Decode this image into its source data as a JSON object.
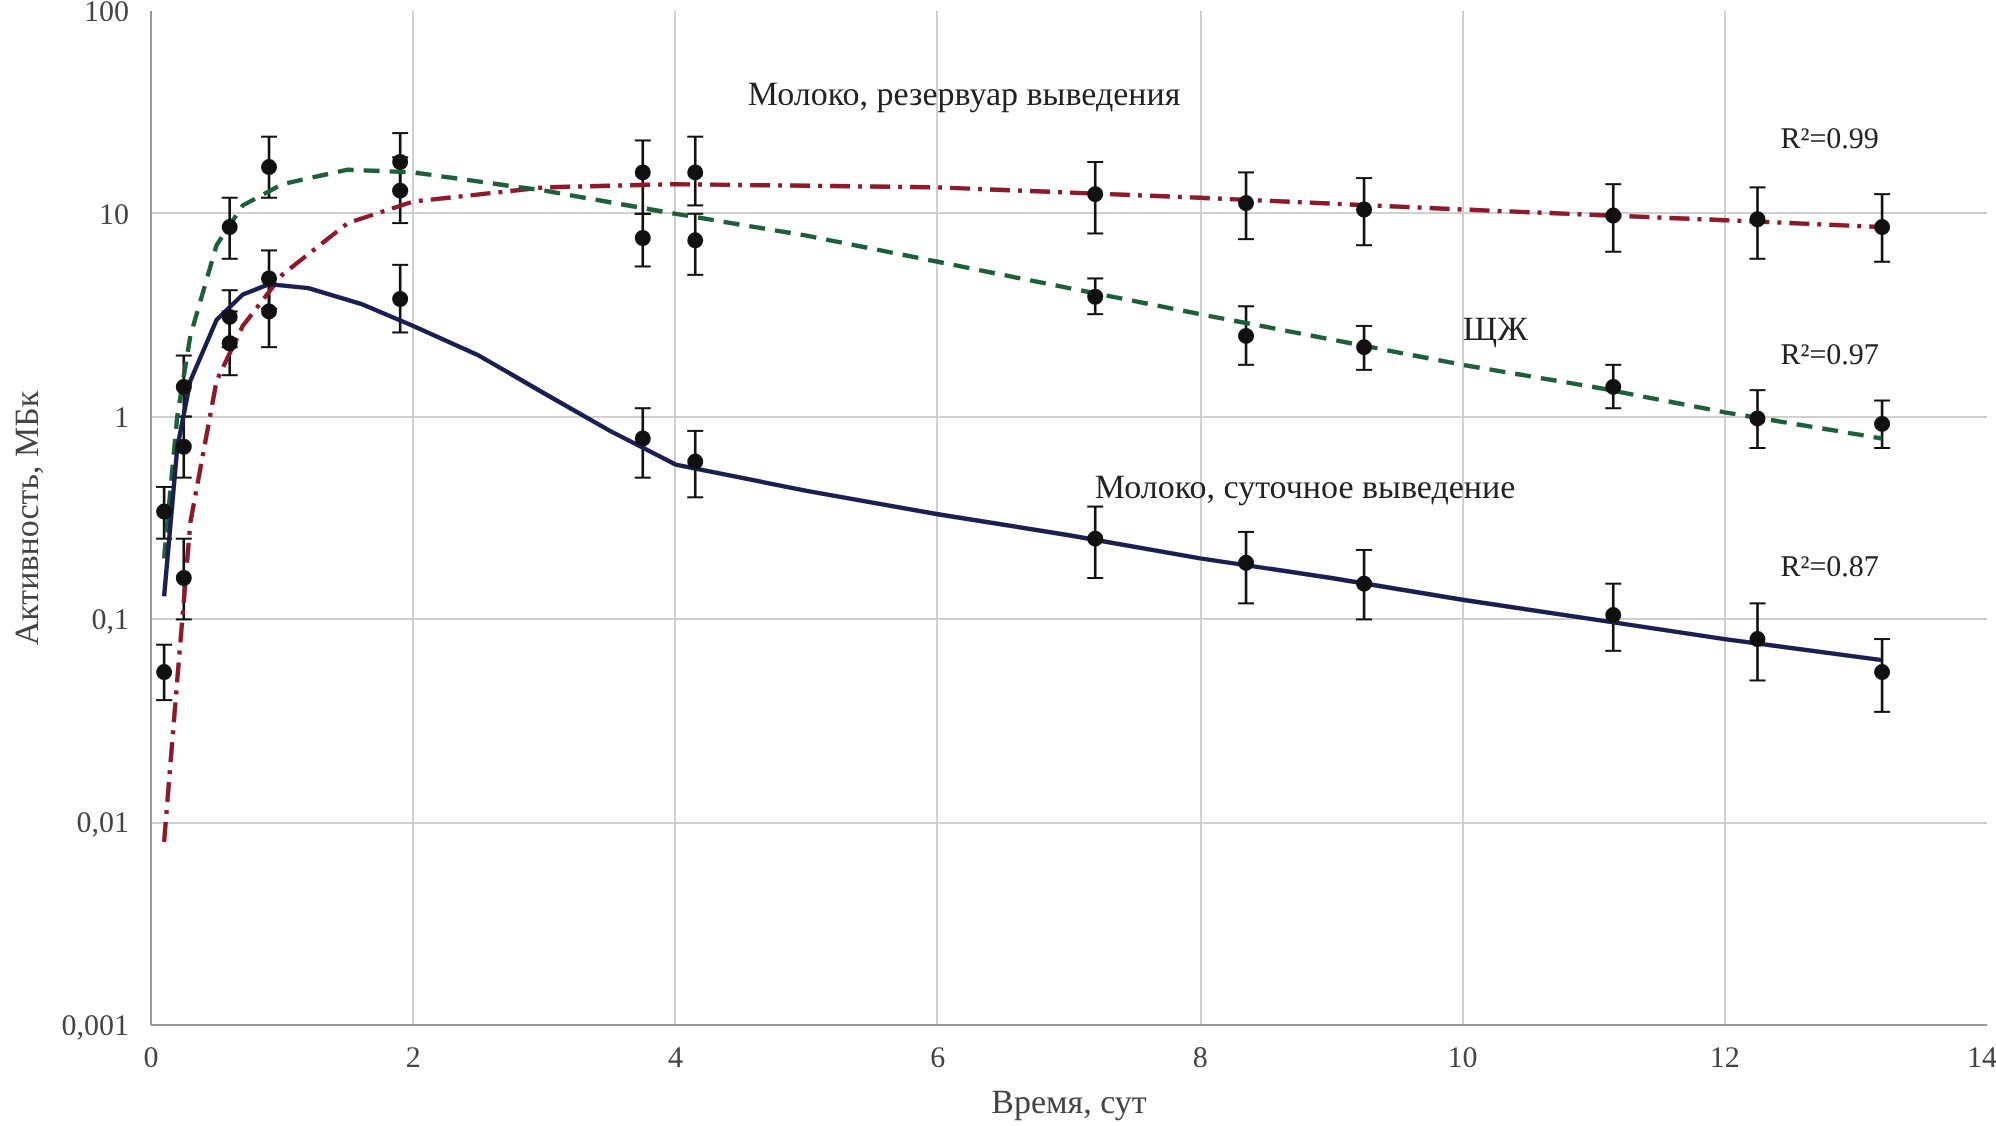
{
  "chart_data": {
    "type": "line",
    "xlabel": "Время, сут",
    "ylabel": "Активность, МБк",
    "log": "y",
    "xlim": [
      0,
      14
    ],
    "xticks": [
      0,
      2,
      4,
      6,
      8,
      10,
      12,
      14
    ],
    "ylim": [
      0.001,
      100
    ],
    "yticks": [
      {
        "value": 0.001,
        "label": "0,001"
      },
      {
        "value": 0.01,
        "label": "0,01"
      },
      {
        "value": 0.1,
        "label": "0,1"
      },
      1,
      10,
      100
    ],
    "grid": true,
    "series": [
      {
        "name": "Молоко, резервуар выведения",
        "color": "#8b1a2a",
        "line_style": "dashdot",
        "marker": "none",
        "x": [
          0.1,
          0.2,
          0.3,
          0.5,
          0.7,
          1,
          1.5,
          2,
          3,
          4,
          6,
          8,
          10,
          12,
          13.2
        ],
        "values": [
          0.008,
          0.05,
          0.3,
          1.5,
          2.8,
          5,
          9,
          11.5,
          13.5,
          14,
          13.5,
          12,
          10.5,
          9.3,
          8.6
        ]
      },
      {
        "name": "ЩЖ",
        "color": "#1e5e3a",
        "line_style": "dashed",
        "marker": "none",
        "x": [
          0.1,
          0.2,
          0.3,
          0.5,
          0.7,
          1,
          1.5,
          2,
          3,
          4,
          5,
          6,
          7,
          8,
          9,
          10,
          11,
          12,
          13.2
        ],
        "values": [
          0.2,
          1.0,
          2.5,
          7,
          11,
          14,
          16.5,
          16,
          13,
          10,
          7.8,
          5.8,
          4.3,
          3.2,
          2.4,
          1.8,
          1.4,
          1.05,
          0.78
        ]
      },
      {
        "name": "Молоко, суточное выведение",
        "color": "#1b1f4f",
        "line_style": "solid",
        "marker": "none",
        "x": [
          0.1,
          0.2,
          0.3,
          0.5,
          0.7,
          0.9,
          1.2,
          1.6,
          2,
          2.5,
          3,
          3.5,
          4,
          5,
          6,
          7,
          8,
          9,
          10,
          11,
          12,
          13.2
        ],
        "values": [
          0.13,
          0.7,
          1.5,
          3.0,
          4.0,
          4.5,
          4.3,
          3.6,
          2.8,
          2.0,
          1.3,
          0.85,
          0.58,
          0.43,
          0.33,
          0.26,
          0.2,
          0.16,
          0.125,
          0.1,
          0.08,
          0.063
        ]
      },
      {
        "type": "scatter",
        "color": "#111111",
        "marker": "circle",
        "x": [
          0.25,
          0.6,
          0.9,
          1.9,
          3.75,
          4.15,
          7.2,
          8.35,
          9.25,
          11.15,
          12.25,
          13.2
        ],
        "values": [
          0.16,
          2.3,
          3.3,
          13,
          16,
          16,
          12.5,
          11.3,
          10.5,
          9.8,
          9.4,
          8.6
        ],
        "errors": [
          [
            0.1,
            0.25
          ],
          [
            1.6,
            3.3
          ],
          [
            2.2,
            4.8
          ],
          [
            9,
            19
          ],
          [
            10,
            23
          ],
          [
            11,
            24
          ],
          [
            8,
            18
          ],
          [
            7.5,
            16
          ],
          [
            7,
            15
          ],
          [
            6.5,
            14
          ],
          [
            6,
            13.5
          ],
          [
            5.8,
            12.5
          ]
        ]
      },
      {
        "type": "scatter",
        "color": "#111111",
        "marker": "circle",
        "x": [
          0.1,
          0.25,
          0.6,
          0.9,
          1.9,
          3.75,
          4.15,
          7.2,
          8.35,
          9.25,
          11.15,
          12.25,
          13.2
        ],
        "values": [
          0.34,
          0.71,
          8.6,
          17,
          18,
          7.6,
          7.4,
          3.9,
          2.5,
          2.2,
          1.4,
          0.98,
          0.92
        ],
        "errors": [
          [
            0.25,
            0.45
          ],
          [
            0.5,
            1
          ],
          [
            6,
            12
          ],
          [
            12,
            24
          ],
          [
            13,
            25
          ],
          [
            5.5,
            10
          ],
          [
            5,
            10
          ],
          [
            3.2,
            4.8
          ],
          [
            1.8,
            3.5
          ],
          [
            1.7,
            2.8
          ],
          [
            1.1,
            1.8
          ],
          [
            0.7,
            1.35
          ],
          [
            0.7,
            1.2
          ]
        ]
      },
      {
        "type": "scatter",
        "color": "#111111",
        "marker": "circle",
        "x": [
          0.1,
          0.25,
          0.6,
          0.9,
          1.9,
          3.75,
          4.15,
          7.2,
          8.35,
          9.25,
          11.15,
          12.25,
          13.2
        ],
        "values": [
          0.055,
          1.4,
          3.1,
          4.8,
          3.8,
          0.78,
          0.6,
          0.25,
          0.19,
          0.15,
          0.105,
          0.08,
          0.055
        ],
        "errors": [
          [
            0.04,
            0.075
          ],
          [
            1.0,
            2
          ],
          [
            2.2,
            4.2
          ],
          [
            3.4,
            6.6
          ],
          [
            2.6,
            5.6
          ],
          [
            0.5,
            1.1
          ],
          [
            0.4,
            0.85
          ],
          [
            0.16,
            0.36
          ],
          [
            0.12,
            0.27
          ],
          [
            0.1,
            0.22
          ],
          [
            0.07,
            0.15
          ],
          [
            0.05,
            0.12
          ],
          [
            0.035,
            0.08
          ]
        ]
      }
    ],
    "annotations": [
      "R²=0.99",
      "R²=0.97",
      "R²=0.87"
    ]
  }
}
